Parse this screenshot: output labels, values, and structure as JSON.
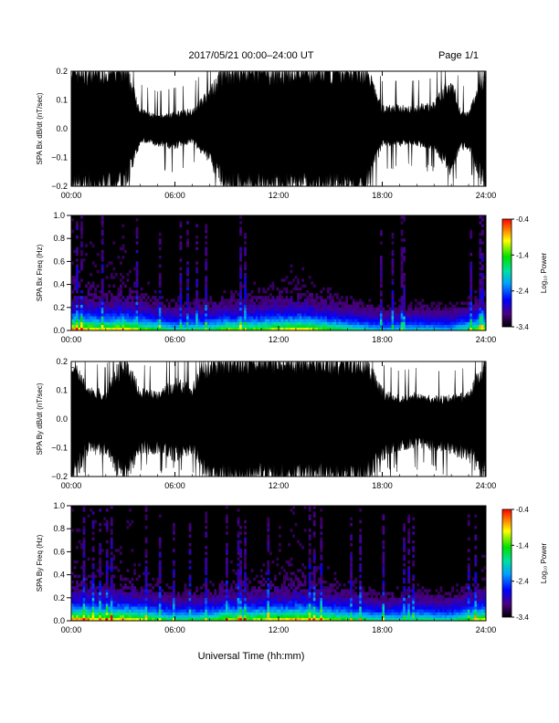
{
  "page": {
    "date_range": "2017/05/21  00:00–24:00 UT",
    "page_label": "Page 1/1",
    "xlabel": "Universal Time (hh:mm)",
    "x_ticks": [
      "00:00",
      "06:00",
      "12:00",
      "18:00",
      "24:00"
    ]
  },
  "chart_data": [
    {
      "type": "line",
      "ylabel": "SPA Bx dB/dt (nT/sec)",
      "xlim": [
        0,
        24
      ],
      "ylim": [
        -0.2,
        0.2
      ],
      "y_ticks": [
        "0.2",
        "0.1",
        "0.0",
        "−0.1",
        "−0.2"
      ],
      "x_ticks": [
        "00:00",
        "06:00",
        "12:00",
        "18:00",
        "24:00"
      ],
      "envelope": {
        "hours": [
          0,
          1,
          2,
          2.5,
          3,
          3.5,
          4,
          5,
          6,
          7,
          8,
          9,
          9.5,
          10,
          11,
          12,
          13,
          14,
          15,
          16,
          17,
          18,
          19,
          20,
          21,
          22,
          22.5,
          23,
          24
        ],
        "upper": [
          0.2,
          0.2,
          0.2,
          0.2,
          0.2,
          0.15,
          0.06,
          0.04,
          0.05,
          0.06,
          0.12,
          0.2,
          0.2,
          0.2,
          0.2,
          0.2,
          0.2,
          0.2,
          0.2,
          0.2,
          0.2,
          0.07,
          0.07,
          0.07,
          0.08,
          0.16,
          0.06,
          0.05,
          0.2
        ],
        "lower": [
          -0.2,
          -0.2,
          -0.2,
          -0.2,
          -0.2,
          -0.12,
          -0.04,
          -0.05,
          -0.06,
          -0.04,
          -0.1,
          -0.2,
          -0.2,
          -0.2,
          -0.2,
          -0.2,
          -0.2,
          -0.2,
          -0.2,
          -0.2,
          -0.2,
          -0.05,
          -0.05,
          -0.05,
          -0.06,
          -0.14,
          -0.06,
          -0.06,
          -0.2
        ]
      }
    },
    {
      "type": "heatmap",
      "ylabel": "SPA Bx Freq (Hz)",
      "colorbar_label": "Log₁₀ Power",
      "xlim": [
        0,
        24
      ],
      "ylim": [
        0,
        1.0
      ],
      "zlim": [
        -3.4,
        -0.4
      ],
      "y_ticks": [
        "0.0",
        "0.2",
        "0.4",
        "0.6",
        "0.8",
        "1.0"
      ],
      "colorbar_ticks": [
        "-0.4",
        "-1.4",
        "-2.4",
        "-3.4"
      ],
      "x_ticks": [
        "00:00",
        "06:00",
        "12:00",
        "18:00",
        "24:00"
      ],
      "activity_hours": [
        0,
        2,
        3,
        4,
        6,
        8,
        9,
        10,
        12,
        13,
        14,
        16,
        18,
        20,
        22,
        24
      ],
      "activity_level": [
        0.95,
        0.8,
        0.9,
        0.75,
        0.55,
        0.6,
        0.75,
        0.7,
        0.8,
        0.85,
        0.8,
        0.6,
        0.45,
        0.5,
        0.45,
        0.8
      ]
    },
    {
      "type": "line",
      "ylabel": "SPA By dB/dt (nT/sec)",
      "xlim": [
        0,
        24
      ],
      "ylim": [
        -0.2,
        0.2
      ],
      "y_ticks": [
        "0.2",
        "0.1",
        "0.0",
        "−0.1",
        "−0.2"
      ],
      "x_ticks": [
        "00:00",
        "06:00",
        "12:00",
        "18:00",
        "24:00"
      ],
      "envelope": {
        "hours": [
          0,
          1,
          2,
          3,
          4,
          5,
          6,
          7,
          8,
          9,
          10,
          11,
          12,
          13,
          14,
          15,
          16,
          17,
          18,
          19,
          20,
          21,
          22,
          23,
          24
        ],
        "upper": [
          0.2,
          0.1,
          0.08,
          0.2,
          0.09,
          0.08,
          0.12,
          0.1,
          0.2,
          0.2,
          0.2,
          0.2,
          0.2,
          0.2,
          0.2,
          0.2,
          0.2,
          0.2,
          0.09,
          0.07,
          0.08,
          0.07,
          0.07,
          0.08,
          0.2
        ],
        "lower": [
          -0.2,
          -0.1,
          -0.1,
          -0.2,
          -0.1,
          -0.1,
          -0.12,
          -0.1,
          -0.2,
          -0.2,
          -0.2,
          -0.2,
          -0.2,
          -0.2,
          -0.2,
          -0.2,
          -0.2,
          -0.2,
          -0.12,
          -0.09,
          -0.08,
          -0.09,
          -0.1,
          -0.12,
          -0.2
        ]
      }
    },
    {
      "type": "heatmap",
      "ylabel": "SPA By Freq (Hz)",
      "colorbar_label": "Log₁₀ Power",
      "xlim": [
        0,
        24
      ],
      "ylim": [
        0,
        1.0
      ],
      "zlim": [
        -3.4,
        -0.4
      ],
      "y_ticks": [
        "0.0",
        "0.2",
        "0.4",
        "0.6",
        "0.8",
        "1.0"
      ],
      "colorbar_ticks": [
        "-0.4",
        "-1.4",
        "-2.4",
        "-3.4"
      ],
      "x_ticks": [
        "00:00",
        "06:00",
        "12:00",
        "18:00",
        "24:00"
      ],
      "activity_hours": [
        0,
        2,
        3,
        4,
        6,
        8,
        9,
        10,
        12,
        13,
        14,
        16,
        18,
        20,
        22,
        24
      ],
      "activity_level": [
        0.95,
        0.85,
        0.9,
        0.8,
        0.6,
        0.65,
        0.8,
        0.75,
        0.85,
        0.9,
        0.85,
        0.7,
        0.55,
        0.6,
        0.55,
        0.85
      ]
    }
  ]
}
